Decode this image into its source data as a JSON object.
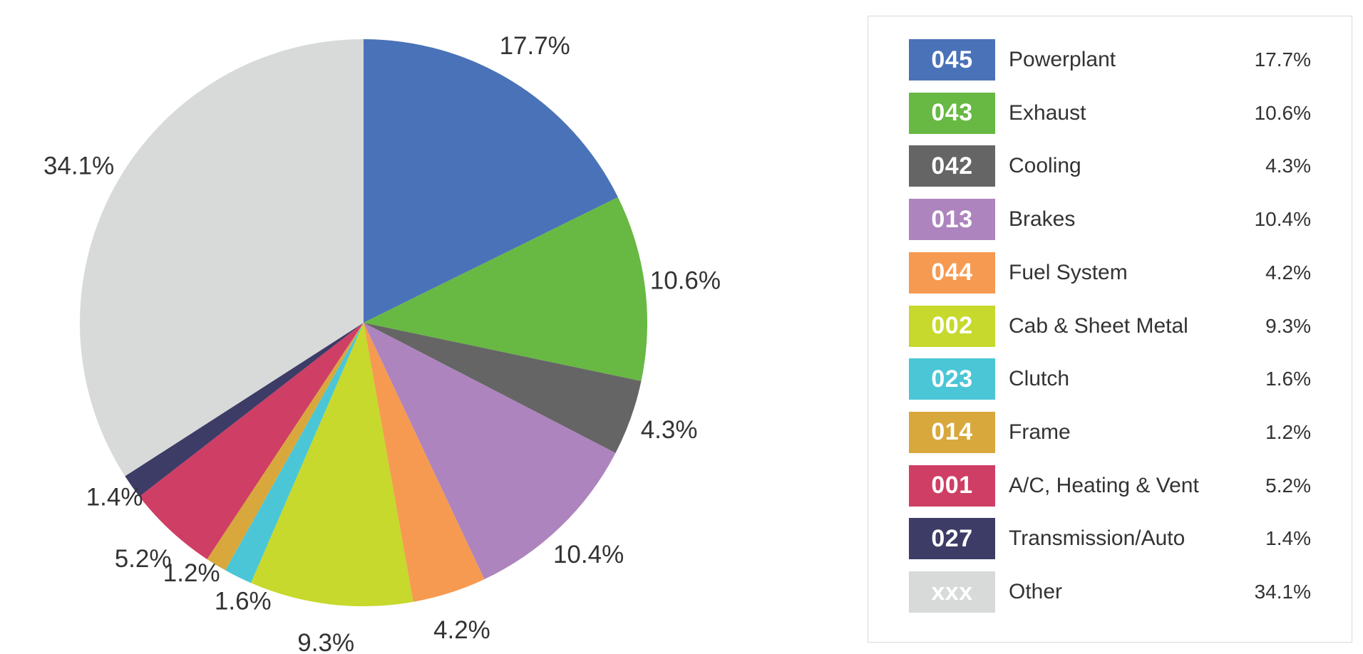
{
  "chart_data": {
    "type": "pie",
    "title": "",
    "start_angle_deg": 0,
    "direction": "clockwise",
    "slices": [
      {
        "code": "045",
        "label": "Powerplant",
        "value": 17.7,
        "value_label": "17.7%",
        "color": "#4a72b8"
      },
      {
        "code": "043",
        "label": "Exhaust",
        "value": 10.6,
        "value_label": "10.6%",
        "color": "#68b844"
      },
      {
        "code": "042",
        "label": "Cooling",
        "value": 4.3,
        "value_label": "4.3%",
        "color": "#656565"
      },
      {
        "code": "013",
        "label": "Brakes",
        "value": 10.4,
        "value_label": "10.4%",
        "color": "#ad84bd"
      },
      {
        "code": "044",
        "label": "Fuel System",
        "value": 4.2,
        "value_label": "4.2%",
        "color": "#f69a51"
      },
      {
        "code": "002",
        "label": "Cab & Sheet Metal",
        "value": 9.3,
        "value_label": "9.3%",
        "color": "#c6d92c"
      },
      {
        "code": "023",
        "label": "Clutch",
        "value": 1.6,
        "value_label": "1.6%",
        "color": "#4bc6d6"
      },
      {
        "code": "014",
        "label": "Frame",
        "value": 1.2,
        "value_label": "1.2%",
        "color": "#d8a83c"
      },
      {
        "code": "001",
        "label": "A/C, Heating & Vent",
        "value": 5.2,
        "value_label": "5.2%",
        "color": "#cf3e65"
      },
      {
        "code": "027",
        "label": "Transmission/Auto",
        "value": 1.4,
        "value_label": "1.4%",
        "color": "#3c3c66"
      },
      {
        "code": "xxx",
        "label": "Other",
        "value": 34.1,
        "value_label": "34.1%",
        "color": "#d8d9d9"
      }
    ],
    "legend": "right"
  }
}
